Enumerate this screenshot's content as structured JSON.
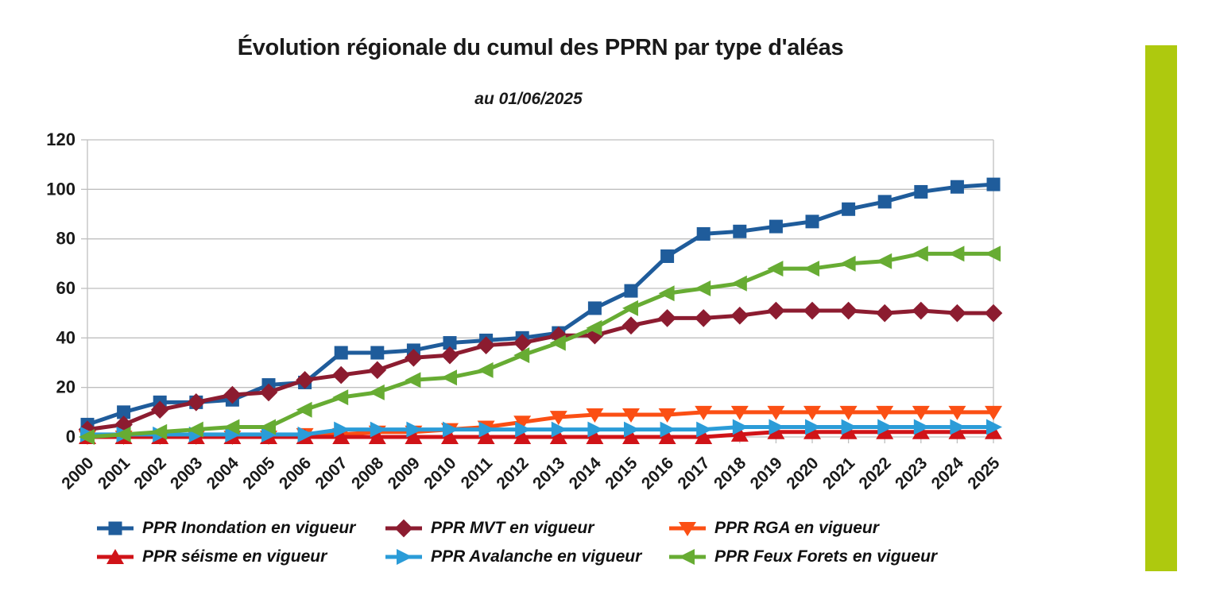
{
  "title": "Évolution régionale du cumul des PPRN par type d'aléas",
  "subtitle": "au 01/06/2025",
  "chart_data": {
    "type": "line",
    "x": [
      2000,
      2001,
      2002,
      2003,
      2004,
      2005,
      2006,
      2007,
      2008,
      2009,
      2010,
      2011,
      2012,
      2013,
      2014,
      2015,
      2016,
      2017,
      2018,
      2019,
      2020,
      2021,
      2022,
      2023,
      2024,
      2025
    ],
    "ylim": [
      0,
      120
    ],
    "yticks": [
      0,
      20,
      40,
      60,
      80,
      100,
      120
    ],
    "grid": true,
    "legend_position": "bottom",
    "title": "Évolution régionale du cumul des PPRN par type d'aléas",
    "subtitle": "au 01/06/2025",
    "series": [
      {
        "name": "PPR Inondation en vigueur",
        "color": "#1F5C9B",
        "marker": "square",
        "values": [
          5,
          10,
          14,
          14,
          15,
          21,
          22,
          34,
          34,
          35,
          38,
          39,
          40,
          42,
          52,
          59,
          73,
          82,
          83,
          85,
          87,
          92,
          95,
          99,
          101,
          102
        ]
      },
      {
        "name": "PPR MVT en vigueur",
        "color": "#8C1C30",
        "marker": "diamond",
        "values": [
          3,
          5,
          11,
          14,
          17,
          18,
          23,
          25,
          27,
          32,
          33,
          37,
          38,
          41,
          41,
          45,
          48,
          48,
          49,
          51,
          51,
          51,
          50,
          51,
          50,
          50
        ]
      },
      {
        "name": "PPR RGA en vigueur",
        "color": "#FB4F14",
        "marker": "triangle-down",
        "values": [
          0,
          0,
          0,
          0,
          0,
          0,
          1,
          1,
          2,
          2,
          3,
          4,
          6,
          8,
          9,
          9,
          9,
          10,
          10,
          10,
          10,
          10,
          10,
          10,
          10,
          10
        ]
      },
      {
        "name": "PPR séisme en vigueur",
        "color": "#D01318",
        "marker": "triangle-up",
        "values": [
          0,
          0,
          0,
          0,
          0,
          0,
          0,
          0,
          0,
          0,
          0,
          0,
          0,
          0,
          0,
          0,
          0,
          0,
          1,
          2,
          2,
          2,
          2,
          2,
          2,
          2
        ]
      },
      {
        "name": "PPR Avalanche en vigueur",
        "color": "#2B9CD8",
        "marker": "triangle-right",
        "values": [
          1,
          1,
          1,
          1,
          1,
          1,
          1,
          3,
          3,
          3,
          3,
          3,
          3,
          3,
          3,
          3,
          3,
          3,
          4,
          4,
          4,
          4,
          4,
          4,
          4,
          4
        ]
      },
      {
        "name": "PPR Feux Forets en vigueur",
        "color": "#67AC33",
        "marker": "triangle-left",
        "values": [
          0,
          1,
          2,
          3,
          4,
          4,
          11,
          16,
          18,
          23,
          24,
          27,
          33,
          38,
          44,
          52,
          58,
          60,
          62,
          68,
          68,
          70,
          71,
          74,
          74,
          74
        ]
      }
    ]
  },
  "decor": {
    "side_bar_color": "#AEC90E"
  },
  "axes": {
    "grid_color": "#BFBFBF",
    "text_color": "#1a1a1a"
  }
}
